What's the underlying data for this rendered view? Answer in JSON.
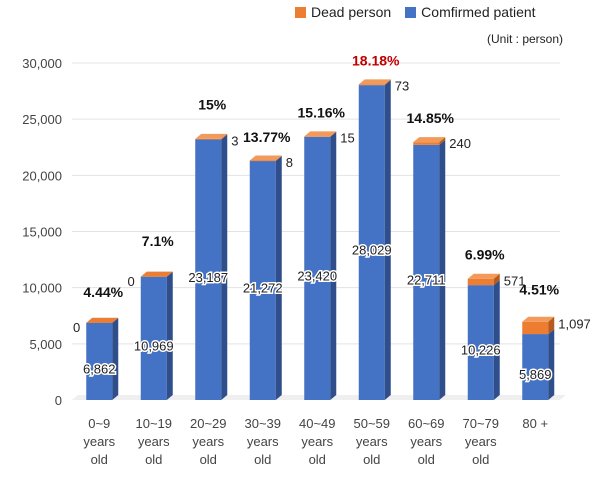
{
  "chart_data": {
    "type": "bar",
    "stacked": true,
    "categories": [
      "0~9 years old",
      "10~19 years old",
      "20~29 years old",
      "30~39 years old",
      "40~49 years old",
      "50~59 years old",
      "60~69 years old",
      "70~79 years old",
      "80 +"
    ],
    "category_lines": [
      [
        "0~9",
        "years",
        "old"
      ],
      [
        "10~19",
        "years",
        "old"
      ],
      [
        "20~29",
        "years",
        "old"
      ],
      [
        "30~39",
        "years",
        "old"
      ],
      [
        "40~49",
        "years",
        "old"
      ],
      [
        "50~59",
        "years",
        "old"
      ],
      [
        "60~69",
        "years",
        "old"
      ],
      [
        "70~79",
        "years",
        "old"
      ],
      [
        "80 +"
      ]
    ],
    "series": [
      {
        "name": "Comfirmed patient",
        "color": "#4472C4",
        "values": [
          6862,
          10969,
          23187,
          21272,
          23420,
          28029,
          22711,
          10226,
          5869
        ]
      },
      {
        "name": "Dead person",
        "color": "#ED7D31",
        "values": [
          0,
          0,
          3,
          8,
          15,
          73,
          240,
          571,
          1097
        ]
      }
    ],
    "confirmed_labels": [
      "6,862",
      "10,969",
      "23,187",
      "21,272",
      "23,420",
      "28,029",
      "22,711",
      "10,226",
      "5,869"
    ],
    "dead_labels": [
      "0",
      "0",
      "3",
      "8",
      "15",
      "73",
      "240",
      "571",
      "1,097"
    ],
    "percent_labels": [
      "4.44%",
      "7.1%",
      "15%",
      "13.77%",
      "15.16%",
      "18.18%",
      "14.85%",
      "6.99%",
      "4.51%"
    ],
    "highlight_color": "#C00000",
    "highlight_index": 5,
    "yticks": [
      "0",
      "5,000",
      "10,000",
      "15,000",
      "20,000",
      "25,000",
      "30,000"
    ],
    "ylim": [
      0,
      30000
    ],
    "legend_position": "top-right",
    "unit_label": "(Unit : person)"
  }
}
